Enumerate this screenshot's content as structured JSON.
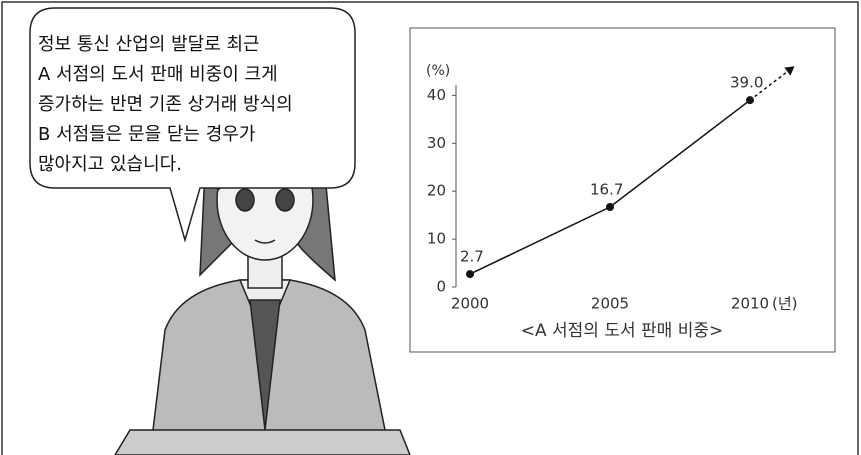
{
  "speech_bubble": {
    "lines": [
      "정보 통신 산업의 발달로 최근",
      "A 서점의 도서 판매 비중이 크게",
      "증가하는 반면 기존 상거래 방식의",
      "B 서점들은 문을 닫는 경우가",
      "많아지고 있습니다."
    ]
  },
  "chart_data": {
    "type": "line",
    "title": "<A 서점의 도서 판매 비중>",
    "x_label": "(년)",
    "y_label": "(%)",
    "x": [
      2000,
      2005,
      2010
    ],
    "values": [
      2.7,
      16.7,
      39.0
    ],
    "value_labels": [
      "2.7",
      "16.7",
      "39.0"
    ],
    "color": "#111111",
    "xlim": [
      1999.5,
      2011.8
    ],
    "ylim": [
      0,
      43
    ],
    "xticks": [
      2000,
      2005,
      2010
    ],
    "yticks": [
      0,
      10,
      20,
      30,
      40
    ],
    "grid": false,
    "trend_arrow": true
  }
}
